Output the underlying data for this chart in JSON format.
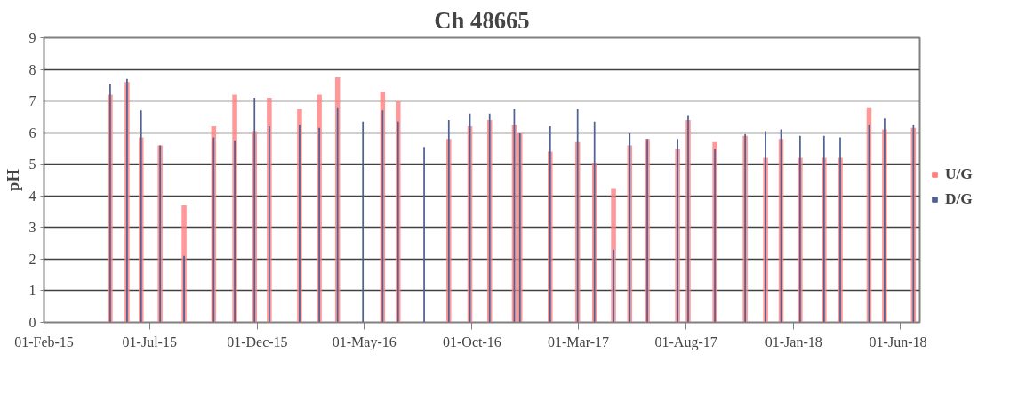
{
  "chart_data": {
    "type": "bar",
    "title": "Ch 48665",
    "ylabel": "pH",
    "x": [
      "2015-05-06",
      "2015-05-30",
      "2015-06-19",
      "2015-07-16",
      "2015-08-19",
      "2015-09-30",
      "2015-10-30",
      "2015-11-27",
      "2015-12-18",
      "2016-01-30",
      "2016-02-27",
      "2016-03-24",
      "2016-04-29",
      "2016-05-27",
      "2016-06-18",
      "2016-07-25",
      "2016-08-29",
      "2016-09-28",
      "2016-10-26",
      "2016-11-30",
      "2016-12-08",
      "2017-01-20",
      "2017-02-28",
      "2017-03-24",
      "2017-04-20",
      "2017-05-13",
      "2017-06-07",
      "2017-07-20",
      "2017-08-04",
      "2017-09-11",
      "2017-10-24",
      "2017-11-22",
      "2017-12-14",
      "2018-01-10",
      "2018-02-13",
      "2018-03-08",
      "2018-04-18",
      "2018-05-10",
      "2018-06-20"
    ],
    "series": [
      {
        "name": "U/G",
        "color": "#ff8080",
        "values": [
          7.2,
          7.6,
          5.85,
          5.6,
          3.7,
          6.2,
          7.2,
          6.05,
          7.1,
          6.75,
          7.2,
          7.75,
          null,
          7.3,
          7.0,
          null,
          5.8,
          6.2,
          6.4,
          6.25,
          6.0,
          5.4,
          5.7,
          5.05,
          4.25,
          5.6,
          5.8,
          5.5,
          6.4,
          5.7,
          5.9,
          5.2,
          5.8,
          5.2,
          5.2,
          5.2,
          6.8,
          6.1,
          6.15
        ]
      },
      {
        "name": "D/G",
        "color": "#4f6292",
        "values": [
          7.55,
          7.7,
          6.7,
          5.6,
          2.1,
          5.85,
          5.75,
          7.1,
          6.2,
          6.25,
          6.15,
          6.8,
          6.35,
          6.7,
          6.35,
          5.55,
          6.4,
          6.6,
          6.6,
          6.75,
          6.0,
          6.2,
          6.75,
          6.35,
          2.3,
          6.0,
          5.8,
          5.8,
          6.55,
          5.5,
          5.95,
          6.05,
          6.1,
          5.9,
          5.9,
          5.85,
          6.25,
          6.45,
          6.25
        ]
      }
    ],
    "xlim": [
      "2015-02-01",
      "2018-06-29"
    ],
    "xticks": [
      {
        "value": "2015-02-01",
        "label": "01-Feb-15"
      },
      {
        "value": "2015-07-01",
        "label": "01-Jul-15"
      },
      {
        "value": "2015-12-01",
        "label": "01-Dec-15"
      },
      {
        "value": "2016-05-01",
        "label": "01-May-16"
      },
      {
        "value": "2016-10-01",
        "label": "01-Oct-16"
      },
      {
        "value": "2017-03-01",
        "label": "01-Mar-17"
      },
      {
        "value": "2017-08-01",
        "label": "01-Aug-17"
      },
      {
        "value": "2018-01-01",
        "label": "01-Jan-18"
      },
      {
        "value": "2018-06-01",
        "label": "01-Jun-18"
      }
    ],
    "ylim": [
      0,
      9
    ],
    "yticks": [
      0,
      1,
      2,
      3,
      4,
      5,
      6,
      7,
      8,
      9
    ],
    "grid": "y",
    "legend": "right"
  }
}
